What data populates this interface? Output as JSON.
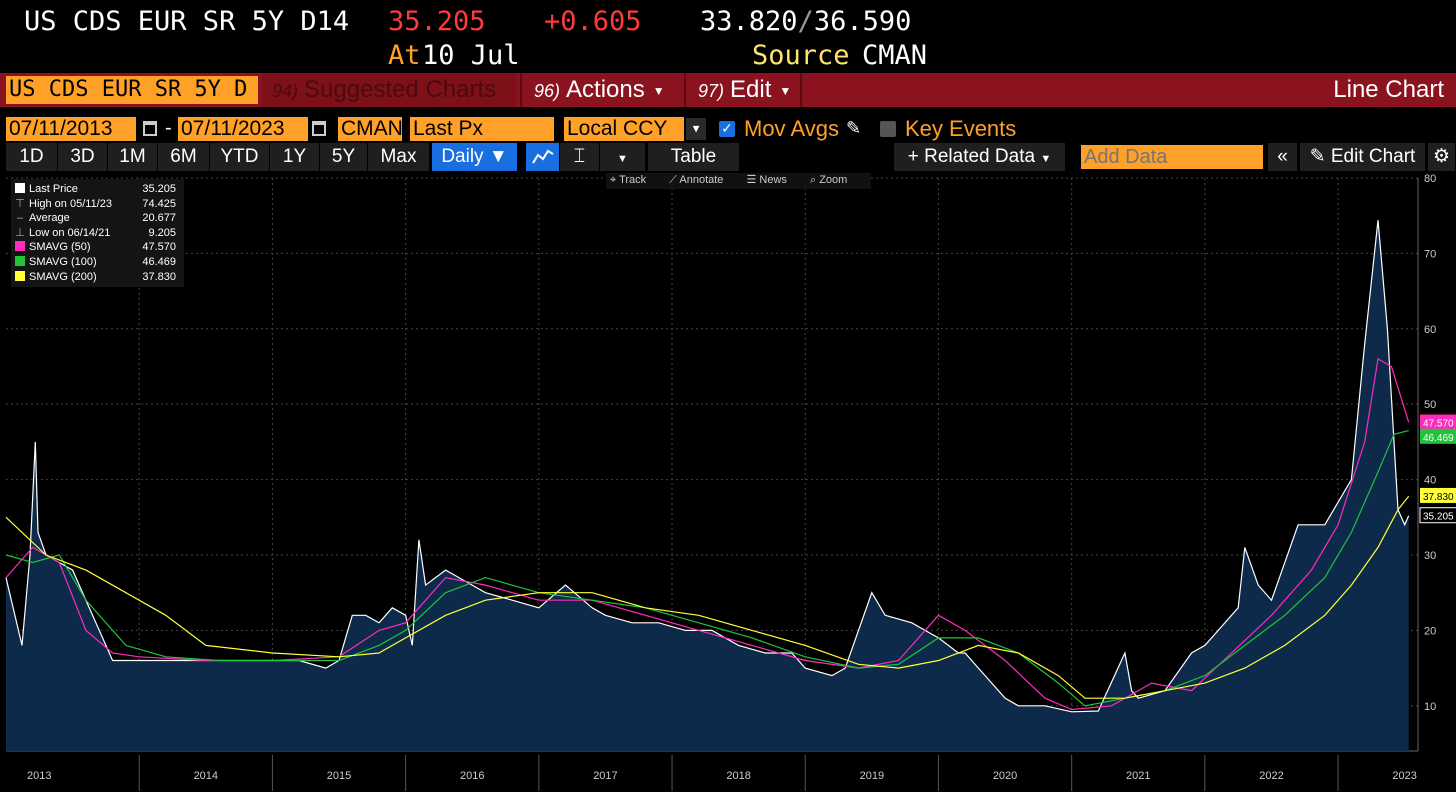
{
  "header": {
    "ticker": "US CDS EUR SR 5Y D14",
    "last": "35.205",
    "change": "+0.605",
    "low": "33.820",
    "high": "36.590",
    "at_label": "At",
    "at_value": "10 Jul",
    "source_label": "Source",
    "source_value": "CMAN"
  },
  "menubar": {
    "security_field": "US CDS EUR SR 5Y D",
    "suggested_num": "94)",
    "suggested_label": "Suggested Charts",
    "actions_num": "96)",
    "actions_label": "Actions",
    "edit_num": "97)",
    "edit_label": "Edit",
    "chart_type": "Line Chart"
  },
  "settings": {
    "start_date": "07/11/2013",
    "end_date": "07/11/2023",
    "source": "CMAN",
    "field": "Last Px",
    "currency": "Local CCY",
    "mov_avgs_label": "Mov Avgs",
    "mov_avgs_checked": true,
    "key_events_label": "Key Events",
    "key_events_checked": false
  },
  "toolbar": {
    "ranges": [
      "1D",
      "3D",
      "1M",
      "6M",
      "YTD",
      "1Y",
      "5Y",
      "Max"
    ],
    "frequency": "Daily",
    "table_label": "Table",
    "related_data": "+ Related Data",
    "add_data_placeholder": "Add Data",
    "edit_chart": "Edit Chart",
    "chart_tools": [
      "Track",
      "Annotate",
      "News",
      "Zoom"
    ]
  },
  "legend": [
    {
      "label": "Last Price",
      "value": "35.205",
      "color": "#ffffff",
      "kind": "swatch"
    },
    {
      "label": "High on 05/11/23",
      "value": "74.425",
      "kind": "high"
    },
    {
      "label": "Average",
      "value": "20.677",
      "kind": "avg"
    },
    {
      "label": "Low on 06/14/21",
      "value": "9.205",
      "kind": "low"
    },
    {
      "label": "SMAVG (50)",
      "value": "47.570",
      "color": "#ff2bbd",
      "kind": "swatch"
    },
    {
      "label": "SMAVG (100)",
      "value": "46.469",
      "color": "#1ec43a",
      "kind": "swatch"
    },
    {
      "label": "SMAVG (200)",
      "value": "37.830",
      "color": "#ffff3a",
      "kind": "swatch"
    }
  ],
  "chart_data": {
    "type": "line",
    "title": "",
    "xlabel": "",
    "ylabel": "",
    "ylim": [
      4,
      80
    ],
    "xlim": [
      2013.0,
      2023.6
    ],
    "y_ticks": [
      10,
      20,
      30,
      40,
      50,
      60,
      70,
      80
    ],
    "x_ticks": [
      "2013",
      "2014",
      "2015",
      "2016",
      "2017",
      "2018",
      "2019",
      "2020",
      "2021",
      "2022",
      "2023"
    ],
    "grid": true,
    "legend_position": "top-left",
    "last_price_tags": [
      {
        "value": "47.570",
        "color": "#ff2bbd"
      },
      {
        "value": "46.469",
        "color": "#1ec43a"
      },
      {
        "value": "37.830",
        "color": "#ffff3a"
      },
      {
        "value": "35.205",
        "color": "#ffffff"
      }
    ],
    "series": [
      {
        "name": "Last Price",
        "color": "#ffffff",
        "x": [
          2013.0,
          2013.12,
          2013.18,
          2013.22,
          2013.24,
          2013.3,
          2013.4,
          2013.5,
          2013.6,
          2013.8,
          2013.9,
          2014.0,
          2014.2,
          2014.4,
          2014.6,
          2014.8,
          2015.0,
          2015.2,
          2015.4,
          2015.5,
          2015.6,
          2015.7,
          2015.8,
          2015.9,
          2016.0,
          2016.05,
          2016.1,
          2016.15,
          2016.3,
          2016.4,
          2016.5,
          2016.6,
          2016.8,
          2017.0,
          2017.2,
          2017.4,
          2017.5,
          2017.7,
          2017.9,
          2018.1,
          2018.3,
          2018.5,
          2018.7,
          2018.9,
          2019.0,
          2019.2,
          2019.3,
          2019.5,
          2019.6,
          2019.8,
          2019.9,
          2020.0,
          2020.15,
          2020.2,
          2020.3,
          2020.5,
          2020.6,
          2020.8,
          2021.0,
          2021.2,
          2021.4,
          2021.45,
          2021.5,
          2021.7,
          2021.9,
          2022.0,
          2022.1,
          2022.2,
          2022.25,
          2022.3,
          2022.4,
          2022.5,
          2022.7,
          2022.9,
          2023.0,
          2023.1,
          2023.2,
          2023.3,
          2023.37,
          2023.42,
          2023.45,
          2023.5,
          2023.53
        ],
        "y": [
          27,
          18,
          30,
          45,
          33,
          30,
          29,
          28,
          24,
          16,
          16,
          16,
          16,
          16,
          16,
          16,
          16,
          16,
          15,
          16,
          22,
          22,
          21,
          23,
          22,
          18,
          32,
          26,
          28,
          27,
          26,
          25,
          24,
          23,
          26,
          23,
          22,
          21,
          21,
          20,
          20,
          18,
          17,
          17,
          15,
          14,
          15,
          25,
          22,
          21,
          20,
          19,
          17,
          17,
          15,
          11,
          10,
          10,
          9.2,
          9.3,
          17,
          12,
          11,
          12,
          17,
          18,
          20,
          22,
          23,
          31,
          26,
          24,
          34,
          34,
          37,
          40,
          58,
          74.4,
          60,
          45,
          36,
          34,
          35.2
        ]
      },
      {
        "name": "SMAVG (50)",
        "color": "#ff2bbd",
        "x": [
          2013.0,
          2013.2,
          2013.4,
          2013.6,
          2013.8,
          2014.0,
          2014.5,
          2015.0,
          2015.5,
          2015.8,
          2016.0,
          2016.3,
          2016.6,
          2017.0,
          2017.4,
          2017.8,
          2018.2,
          2018.6,
          2019.0,
          2019.4,
          2019.7,
          2020.0,
          2020.2,
          2020.5,
          2020.8,
          2021.0,
          2021.3,
          2021.6,
          2021.9,
          2022.2,
          2022.5,
          2022.8,
          2023.0,
          2023.2,
          2023.3,
          2023.4,
          2023.53
        ],
        "y": [
          27,
          31,
          29,
          20,
          17,
          16.5,
          16,
          16,
          16.5,
          20,
          21,
          27,
          26,
          24,
          24,
          22,
          20,
          18,
          16,
          15,
          16,
          22,
          20,
          16,
          11,
          9.5,
          10,
          13,
          12,
          17,
          22,
          28,
          34,
          45,
          56,
          55,
          47.6
        ]
      },
      {
        "name": "SMAVG (100)",
        "color": "#1ec43a",
        "x": [
          2013.0,
          2013.2,
          2013.4,
          2013.6,
          2013.9,
          2014.2,
          2014.6,
          2015.0,
          2015.5,
          2015.8,
          2016.0,
          2016.3,
          2016.6,
          2017.0,
          2017.4,
          2017.8,
          2018.2,
          2018.6,
          2019.0,
          2019.4,
          2019.7,
          2020.0,
          2020.3,
          2020.6,
          2020.9,
          2021.1,
          2021.4,
          2021.7,
          2022.0,
          2022.3,
          2022.6,
          2022.9,
          2023.1,
          2023.3,
          2023.42,
          2023.53
        ],
        "y": [
          30,
          29,
          30,
          24,
          18,
          16.5,
          16,
          16,
          16,
          18,
          20,
          25,
          27,
          25,
          24,
          23,
          21,
          19,
          16.5,
          15,
          15.5,
          19,
          19,
          17,
          13,
          10,
          11,
          12,
          14,
          18,
          22,
          27,
          33,
          41,
          46,
          46.5
        ]
      },
      {
        "name": "SMAVG (200)",
        "color": "#ffff3a",
        "x": [
          2013.0,
          2013.3,
          2013.6,
          2013.9,
          2014.2,
          2014.5,
          2015.0,
          2015.5,
          2015.8,
          2016.0,
          2016.3,
          2016.6,
          2017.0,
          2017.4,
          2017.8,
          2018.2,
          2018.6,
          2019.0,
          2019.4,
          2019.7,
          2020.0,
          2020.3,
          2020.6,
          2020.9,
          2021.1,
          2021.4,
          2021.7,
          2022.0,
          2022.3,
          2022.6,
          2022.9,
          2023.1,
          2023.3,
          2023.45,
          2023.53
        ],
        "y": [
          35,
          30,
          28,
          25,
          22,
          18,
          17,
          16.5,
          17,
          19,
          22,
          24,
          25,
          25,
          23,
          22,
          20,
          18,
          15.5,
          15,
          16,
          18,
          17,
          14,
          11,
          11,
          12,
          13,
          15,
          18,
          22,
          26,
          31,
          36,
          37.8
        ]
      }
    ]
  }
}
